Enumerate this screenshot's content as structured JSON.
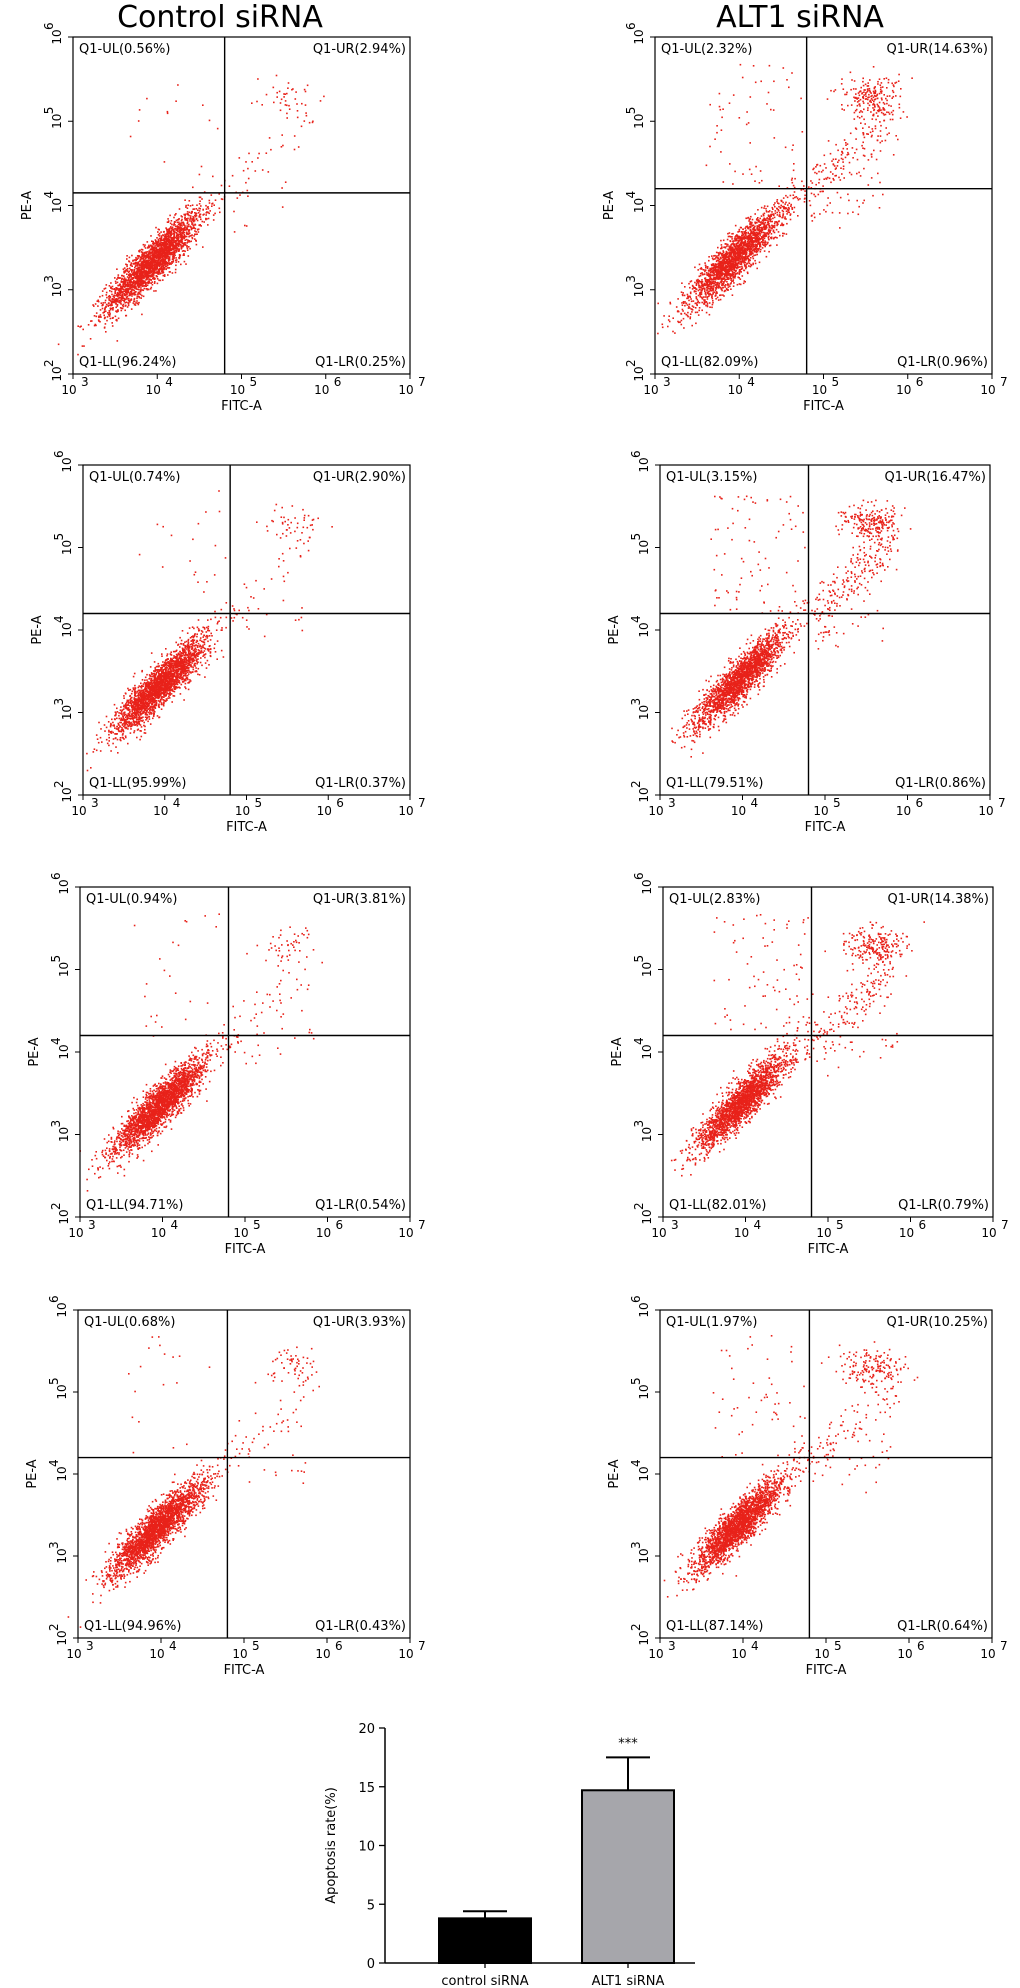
{
  "column_titles": [
    "Control siRNA",
    "ALT1 siRNA"
  ],
  "chart_data": [
    {
      "type": "scatter",
      "panel": "row1-control",
      "xlabel": "FITC-A",
      "ylabel": "PE-A",
      "xlim": [
        3,
        7
      ],
      "ylim": [
        2,
        6
      ],
      "gate": {
        "x": 4.8,
        "y": 4.15
      },
      "x_ticks": [
        "10",
        "10",
        "10",
        "10",
        "10"
      ],
      "x_exps": [
        "3",
        "4",
        "5",
        "6",
        "7"
      ],
      "y_ticks": [
        "10",
        "10",
        "10",
        "10",
        "10"
      ],
      "y_exps": [
        "2",
        "3",
        "4",
        "5",
        "6"
      ],
      "quadrants": {
        "UL": "Q1-UL(0.56%)",
        "UR": "Q1-UR(2.94%)",
        "LL": "Q1-LL(96.24%)",
        "LR": "Q1-LR(0.25%)"
      },
      "percents": {
        "UL": 0.56,
        "UR": 2.94,
        "LL": 96.24,
        "LR": 0.25
      }
    },
    {
      "type": "scatter",
      "panel": "row1-alt1",
      "xlabel": "FITC-A",
      "ylabel": "PE-A",
      "xlim": [
        3,
        7
      ],
      "ylim": [
        2,
        6
      ],
      "gate": {
        "x": 4.8,
        "y": 4.2
      },
      "x_ticks": [
        "10",
        "10",
        "10",
        "10",
        "10"
      ],
      "x_exps": [
        "3",
        "4",
        "5",
        "6",
        "7"
      ],
      "y_ticks": [
        "10",
        "10",
        "10",
        "10",
        "10"
      ],
      "y_exps": [
        "2",
        "3",
        "4",
        "5",
        "6"
      ],
      "quadrants": {
        "UL": "Q1-UL(2.32%)",
        "UR": "Q1-UR(14.63%)",
        "LL": "Q1-LL(82.09%)",
        "LR": "Q1-LR(0.96%)"
      },
      "percents": {
        "UL": 2.32,
        "UR": 14.63,
        "LL": 82.09,
        "LR": 0.96
      }
    },
    {
      "type": "scatter",
      "panel": "row2-control",
      "xlabel": "FITC-A",
      "ylabel": "PE-A",
      "xlim": [
        3,
        7
      ],
      "ylim": [
        2,
        6
      ],
      "gate": {
        "x": 4.8,
        "y": 4.2
      },
      "x_ticks": [
        "10",
        "10",
        "10",
        "10",
        "10"
      ],
      "x_exps": [
        "3",
        "4",
        "5",
        "6",
        "7"
      ],
      "y_ticks": [
        "10",
        "10",
        "10",
        "10",
        "10"
      ],
      "y_exps": [
        "2",
        "3",
        "4",
        "5",
        "6"
      ],
      "quadrants": {
        "UL": "Q1-UL(0.74%)",
        "UR": "Q1-UR(2.90%)",
        "LL": "Q1-LL(95.99%)",
        "LR": "Q1-LR(0.37%)"
      },
      "percents": {
        "UL": 0.74,
        "UR": 2.9,
        "LL": 95.99,
        "LR": 0.37
      }
    },
    {
      "type": "scatter",
      "panel": "row2-alt1",
      "xlabel": "FITC-A",
      "ylabel": "PE-A",
      "xlim": [
        3,
        7
      ],
      "ylim": [
        2,
        6
      ],
      "gate": {
        "x": 4.8,
        "y": 4.2
      },
      "x_ticks": [
        "10",
        "10",
        "10",
        "10",
        "10"
      ],
      "x_exps": [
        "3",
        "4",
        "5",
        "6",
        "7"
      ],
      "y_ticks": [
        "10",
        "10",
        "10",
        "10",
        "10"
      ],
      "y_exps": [
        "2",
        "3",
        "4",
        "5",
        "6"
      ],
      "quadrants": {
        "UL": "Q1-UL(3.15%)",
        "UR": "Q1-UR(16.47%)",
        "LL": "Q1-LL(79.51%)",
        "LR": "Q1-LR(0.86%)"
      },
      "percents": {
        "UL": 3.15,
        "UR": 16.47,
        "LL": 79.51,
        "LR": 0.86
      }
    },
    {
      "type": "scatter",
      "panel": "row3-control",
      "xlabel": "FITC-A",
      "ylabel": "PE-A",
      "xlim": [
        3,
        7
      ],
      "ylim": [
        2,
        6
      ],
      "gate": {
        "x": 4.8,
        "y": 4.2
      },
      "x_ticks": [
        "10",
        "10",
        "10",
        "10",
        "10"
      ],
      "x_exps": [
        "3",
        "4",
        "5",
        "6",
        "7"
      ],
      "y_ticks": [
        "10",
        "10",
        "10",
        "10",
        "10"
      ],
      "y_exps": [
        "2",
        "3",
        "4",
        "5",
        "6"
      ],
      "quadrants": {
        "UL": "Q1-UL(0.94%)",
        "UR": "Q1-UR(3.81%)",
        "LL": "Q1-LL(94.71%)",
        "LR": "Q1-LR(0.54%)"
      },
      "percents": {
        "UL": 0.94,
        "UR": 3.81,
        "LL": 94.71,
        "LR": 0.54
      }
    },
    {
      "type": "scatter",
      "panel": "row3-alt1",
      "xlabel": "FITC-A",
      "ylabel": "PE-A",
      "xlim": [
        3,
        7
      ],
      "ylim": [
        2,
        6
      ],
      "gate": {
        "x": 4.8,
        "y": 4.2
      },
      "x_ticks": [
        "10",
        "10",
        "10",
        "10",
        "10"
      ],
      "x_exps": [
        "3",
        "4",
        "5",
        "6",
        "7"
      ],
      "y_ticks": [
        "10",
        "10",
        "10",
        "10",
        "10"
      ],
      "y_exps": [
        "2",
        "3",
        "4",
        "5",
        "6"
      ],
      "quadrants": {
        "UL": "Q1-UL(2.83%)",
        "UR": "Q1-UR(14.38%)",
        "LL": "Q1-LL(82.01%)",
        "LR": "Q1-LR(0.79%)"
      },
      "percents": {
        "UL": 2.83,
        "UR": 14.38,
        "LL": 82.01,
        "LR": 0.79
      }
    },
    {
      "type": "scatter",
      "panel": "row4-control",
      "xlabel": "FITC-A",
      "ylabel": "PE-A",
      "xlim": [
        3,
        7
      ],
      "ylim": [
        2,
        6
      ],
      "gate": {
        "x": 4.8,
        "y": 4.2
      },
      "x_ticks": [
        "10",
        "10",
        "10",
        "10",
        "10"
      ],
      "x_exps": [
        "3",
        "4",
        "5",
        "6",
        "7"
      ],
      "y_ticks": [
        "10",
        "10",
        "10",
        "10",
        "10"
      ],
      "y_exps": [
        "2",
        "3",
        "4",
        "5",
        "6"
      ],
      "quadrants": {
        "UL": "Q1-UL(0.68%)",
        "UR": "Q1-UR(3.93%)",
        "LL": "Q1-LL(94.96%)",
        "LR": "Q1-LR(0.43%)"
      },
      "percents": {
        "UL": 0.68,
        "UR": 3.93,
        "LL": 94.96,
        "LR": 0.43
      }
    },
    {
      "type": "scatter",
      "panel": "row4-alt1",
      "xlabel": "FITC-A",
      "ylabel": "PE-A",
      "xlim": [
        3,
        7
      ],
      "ylim": [
        2,
        6
      ],
      "gate": {
        "x": 4.8,
        "y": 4.2
      },
      "x_ticks": [
        "10",
        "10",
        "10",
        "10",
        "10"
      ],
      "x_exps": [
        "3",
        "4",
        "5",
        "6",
        "7"
      ],
      "y_ticks": [
        "10",
        "10",
        "10",
        "10",
        "10"
      ],
      "y_exps": [
        "2",
        "3",
        "4",
        "5",
        "6"
      ],
      "quadrants": {
        "UL": "Q1-UL(1.97%)",
        "UR": "Q1-UR(10.25%)",
        "LL": "Q1-LL(87.14%)",
        "LR": "Q1-LR(0.64%)"
      },
      "percents": {
        "UL": 1.97,
        "UR": 10.25,
        "LL": 87.14,
        "LR": 0.64
      }
    },
    {
      "type": "bar",
      "panel": "apoptosis-bar",
      "categories": [
        "control siRNA",
        "ALT1 siRNA"
      ],
      "values": [
        3.8,
        14.7
      ],
      "errors": [
        0.6,
        2.8
      ],
      "ylabel": "Apoptosis rate(%)",
      "ylim": [
        0,
        20
      ],
      "y_ticks": [
        "0",
        "5",
        "10",
        "15",
        "20"
      ],
      "annotations": [
        "***"
      ],
      "colors": [
        "#000000",
        "#a6a6ab"
      ]
    }
  ],
  "colors": {
    "dots": "#e8221a",
    "axis": "#000000"
  }
}
